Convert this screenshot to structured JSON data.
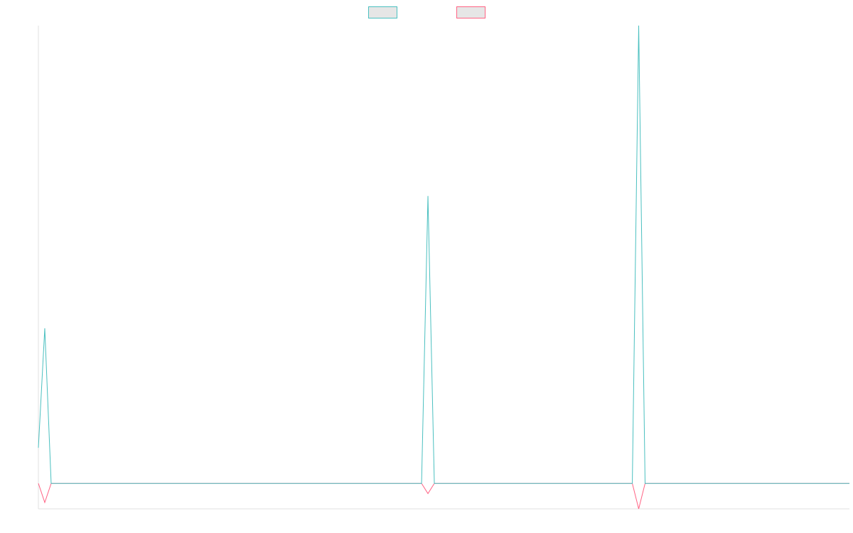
{
  "chart_data": {
    "type": "line",
    "x_count": 128,
    "ylim": [
      -2,
      36
    ],
    "grid": false,
    "legend": "top-center",
    "series": [
      {
        "color": "#4bc0c0",
        "fill": "#e6e6e6",
        "points": [
          [
            0,
            2.8
          ],
          [
            1,
            12.2
          ],
          [
            2,
            0
          ],
          [
            60,
            0
          ],
          [
            61,
            22.6
          ],
          [
            62,
            0
          ],
          [
            93,
            0
          ],
          [
            94,
            36
          ],
          [
            95,
            0
          ],
          [
            127,
            0
          ]
        ]
      },
      {
        "color": "#ff6384",
        "fill": "#e6e6e6",
        "points": [
          [
            0,
            0
          ],
          [
            1,
            -1.5
          ],
          [
            2,
            0
          ],
          [
            59,
            0
          ],
          [
            60,
            0
          ],
          [
            61,
            -0.8
          ],
          [
            62,
            0
          ],
          [
            93,
            0
          ],
          [
            94,
            -2
          ],
          [
            95,
            0
          ],
          [
            127,
            0
          ]
        ]
      }
    ]
  }
}
